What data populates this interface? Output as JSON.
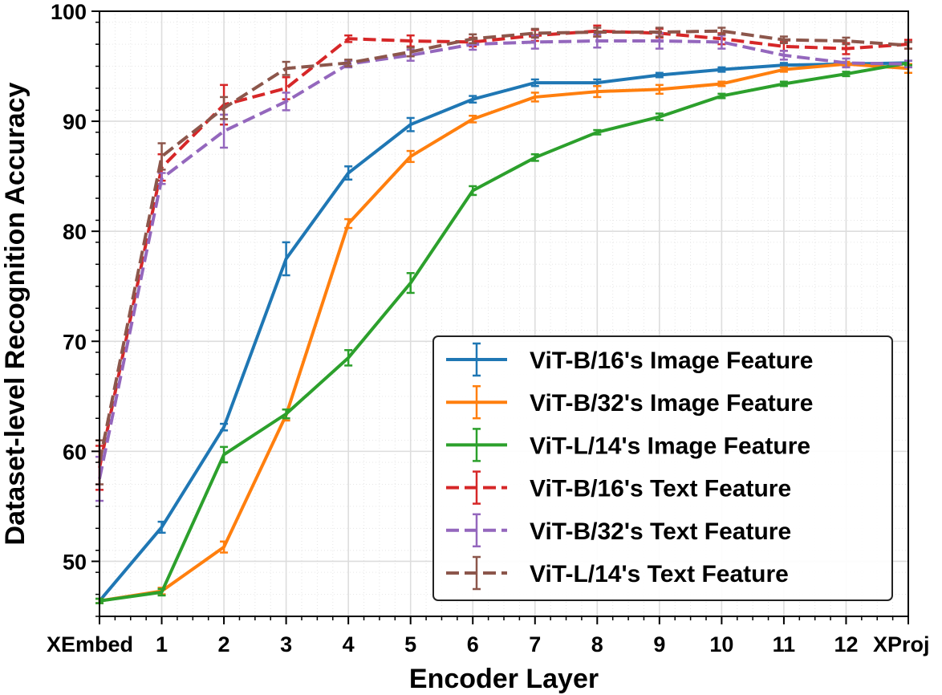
{
  "chart_data": {
    "type": "line",
    "xlabel": "Encoder Layer",
    "ylabel": "Dataset-level Recognition Accuracy",
    "categories": [
      "XEmbed",
      "1",
      "2",
      "3",
      "4",
      "5",
      "6",
      "7",
      "8",
      "9",
      "10",
      "11",
      "12",
      "XProj"
    ],
    "ylim": [
      45,
      100
    ],
    "yticks": [
      50,
      60,
      70,
      80,
      90,
      100
    ],
    "grid": true,
    "legend_position": "lower-right",
    "series": [
      {
        "name": "ViT-B/16's Image Feature",
        "color": "#1f77b4",
        "linestyle": "solid",
        "values": [
          46.4,
          53.1,
          62.2,
          77.5,
          85.3,
          89.7,
          92.0,
          93.5,
          93.5,
          94.2,
          94.7,
          95.1,
          95.2,
          95.3
        ],
        "errors": [
          0.2,
          0.5,
          0.3,
          1.5,
          0.6,
          0.6,
          0.3,
          0.3,
          0.3,
          0.2,
          0.2,
          0.2,
          0.2,
          0.2
        ]
      },
      {
        "name": "ViT-B/32's Image Feature",
        "color": "#ff7f0e",
        "linestyle": "solid",
        "values": [
          46.4,
          47.3,
          51.3,
          63.3,
          80.7,
          86.8,
          90.2,
          92.2,
          92.7,
          92.9,
          93.4,
          94.7,
          95.2,
          94.8
        ],
        "errors": [
          0.2,
          0.3,
          0.5,
          0.5,
          0.4,
          0.5,
          0.3,
          0.4,
          0.5,
          0.4,
          0.2,
          0.2,
          0.2,
          0.4
        ]
      },
      {
        "name": "ViT-L/14's Image Feature",
        "color": "#2ca02c",
        "linestyle": "solid",
        "values": [
          46.4,
          47.2,
          59.7,
          63.4,
          68.5,
          75.3,
          83.7,
          86.7,
          89.0,
          90.4,
          92.3,
          93.4,
          94.3,
          95.3
        ],
        "errors": [
          0.2,
          0.3,
          0.7,
          0.4,
          0.7,
          0.9,
          0.4,
          0.3,
          0.2,
          0.3,
          0.2,
          0.2,
          0.2,
          0.2
        ]
      },
      {
        "name": "ViT-B/16's Text Feature",
        "color": "#d62728",
        "linestyle": "dashed",
        "values": [
          58.5,
          85.8,
          91.5,
          93.0,
          97.5,
          97.3,
          97.2,
          97.8,
          98.2,
          98.0,
          97.5,
          96.8,
          96.6,
          97.0
        ],
        "errors": [
          2.0,
          1.2,
          1.8,
          1.0,
          0.3,
          0.5,
          0.4,
          0.5,
          0.5,
          0.4,
          0.5,
          0.4,
          0.5,
          0.4
        ]
      },
      {
        "name": "ViT-B/32's Text Feature",
        "color": "#9467bd",
        "linestyle": "dashed",
        "values": [
          57.5,
          84.8,
          89.1,
          91.8,
          95.2,
          96.0,
          97.0,
          97.2,
          97.3,
          97.3,
          97.2,
          96.0,
          95.3,
          95.2
        ],
        "errors": [
          2.0,
          0.5,
          1.5,
          0.8,
          0.3,
          0.5,
          0.5,
          0.6,
          0.6,
          0.7,
          0.6,
          0.4,
          0.4,
          0.3
        ]
      },
      {
        "name": "ViT-L/14's Text Feature",
        "color": "#8c564b",
        "linestyle": "dashed",
        "values": [
          59.0,
          86.8,
          91.2,
          94.8,
          95.3,
          96.3,
          97.5,
          98.0,
          98.1,
          98.1,
          98.2,
          97.4,
          97.3,
          96.9
        ],
        "errors": [
          2.0,
          1.2,
          1.0,
          0.6,
          0.3,
          0.4,
          0.4,
          0.4,
          0.4,
          0.4,
          0.3,
          0.3,
          0.3,
          0.3
        ]
      }
    ]
  }
}
